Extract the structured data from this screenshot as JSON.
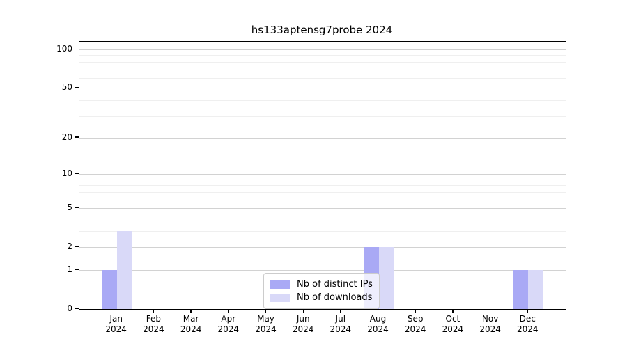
{
  "chart_data": {
    "type": "bar",
    "title": "hs133aptensg7probe 2024",
    "year_label": "2024",
    "categories": [
      "Jan",
      "Feb",
      "Mar",
      "Apr",
      "May",
      "Jun",
      "Jul",
      "Aug",
      "Sep",
      "Oct",
      "Nov",
      "Dec"
    ],
    "series": [
      {
        "name": "Nb of distinct IPs",
        "color": "#a9a9f5",
        "values": [
          1,
          0,
          0,
          0,
          0,
          0,
          0,
          2,
          0,
          0,
          0,
          1
        ]
      },
      {
        "name": "Nb of downloads",
        "color": "#d9d9f8",
        "values": [
          3,
          0,
          0,
          0,
          0,
          0,
          0,
          2,
          0,
          0,
          0,
          1
        ]
      }
    ],
    "yscale": "log1p",
    "ylim": [
      0,
      100
    ],
    "y_major_ticks": [
      0,
      1,
      2,
      5,
      10,
      20,
      50,
      100
    ],
    "y_minor_gridlines": [
      3,
      4,
      6,
      7,
      8,
      9,
      30,
      40,
      60,
      70,
      80,
      90
    ],
    "grid": "horizontal",
    "legend": {
      "position": "bottom-center",
      "entries": [
        "Nb of distinct IPs",
        "Nb of downloads"
      ]
    }
  }
}
